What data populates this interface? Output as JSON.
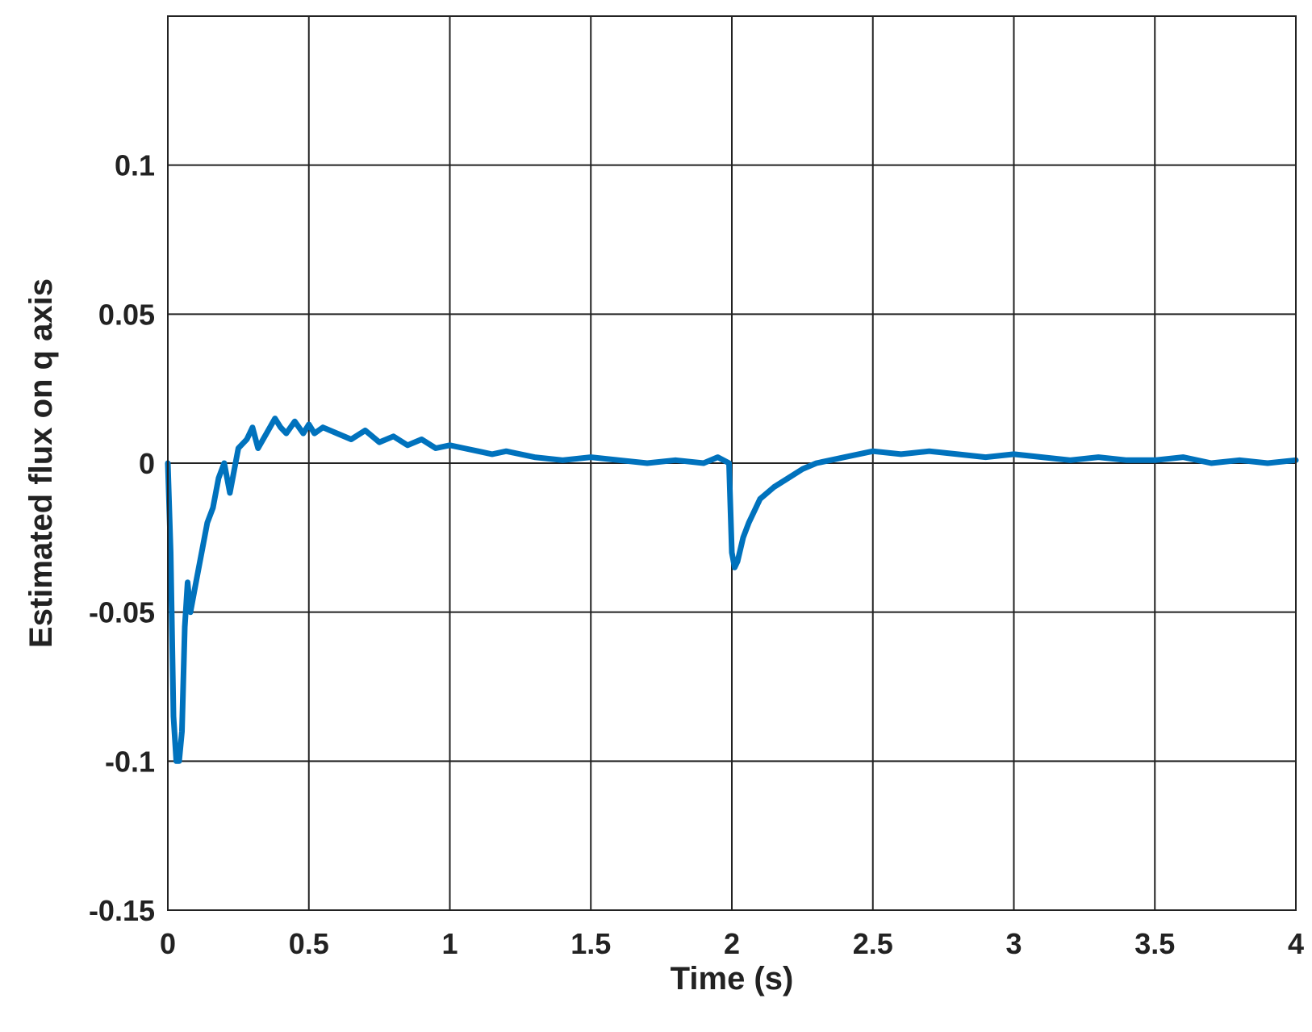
{
  "chart_data": {
    "type": "line",
    "title": "",
    "xlabel": "Time (s)",
    "ylabel": "Estimated flux on q axis",
    "xlim": [
      0,
      4
    ],
    "ylim": [
      -0.15,
      0.15
    ],
    "xticks": [
      0,
      0.5,
      1,
      1.5,
      2,
      2.5,
      3,
      3.5,
      4
    ],
    "xtick_labels": [
      "0",
      "0.5",
      "1",
      "1.5",
      "2",
      "2.5",
      "3",
      "3.5",
      "4"
    ],
    "yticks": [
      -0.15,
      -0.1,
      -0.05,
      0,
      0.05,
      0.1
    ],
    "ytick_labels": [
      "-0.15",
      "-0.1",
      "-0.05",
      "0",
      "0.05",
      "0.1"
    ],
    "grid": true,
    "legend": "none",
    "series": [
      {
        "color": "#0072BD",
        "x": [
          0,
          0.01,
          0.02,
          0.03,
          0.04,
          0.05,
          0.06,
          0.07,
          0.08,
          0.1,
          0.12,
          0.14,
          0.16,
          0.18,
          0.2,
          0.22,
          0.25,
          0.28,
          0.3,
          0.32,
          0.35,
          0.38,
          0.4,
          0.42,
          0.45,
          0.48,
          0.5,
          0.52,
          0.55,
          0.6,
          0.65,
          0.7,
          0.75,
          0.8,
          0.85,
          0.9,
          0.95,
          1,
          1.05,
          1.1,
          1.15,
          1.2,
          1.3,
          1.4,
          1.5,
          1.6,
          1.7,
          1.8,
          1.9,
          1.95,
          1.99,
          2.0,
          2.01,
          2.02,
          2.04,
          2.06,
          2.1,
          2.15,
          2.2,
          2.25,
          2.3,
          2.4,
          2.5,
          2.6,
          2.7,
          2.8,
          2.9,
          3.0,
          3.1,
          3.2,
          3.3,
          3.4,
          3.5,
          3.6,
          3.7,
          3.8,
          3.9,
          4.0
        ],
        "y": [
          0,
          -0.03,
          -0.085,
          -0.1,
          -0.1,
          -0.09,
          -0.055,
          -0.04,
          -0.05,
          -0.04,
          -0.03,
          -0.02,
          -0.015,
          -0.005,
          0,
          -0.01,
          0.005,
          0.008,
          0.012,
          0.005,
          0.01,
          0.015,
          0.012,
          0.01,
          0.014,
          0.01,
          0.013,
          0.01,
          0.012,
          0.01,
          0.008,
          0.011,
          0.007,
          0.009,
          0.006,
          0.008,
          0.005,
          0.006,
          0.005,
          0.004,
          0.003,
          0.004,
          0.002,
          0.001,
          0.002,
          0.001,
          0.0,
          0.001,
          0.0,
          0.002,
          0.0,
          -0.03,
          -0.035,
          -0.033,
          -0.025,
          -0.02,
          -0.012,
          -0.008,
          -0.005,
          -0.002,
          0.0,
          0.002,
          0.004,
          0.003,
          0.004,
          0.003,
          0.002,
          0.003,
          0.002,
          0.001,
          0.002,
          0.001,
          0.001,
          0.002,
          0.0,
          0.001,
          0.0,
          0.001
        ]
      }
    ]
  }
}
